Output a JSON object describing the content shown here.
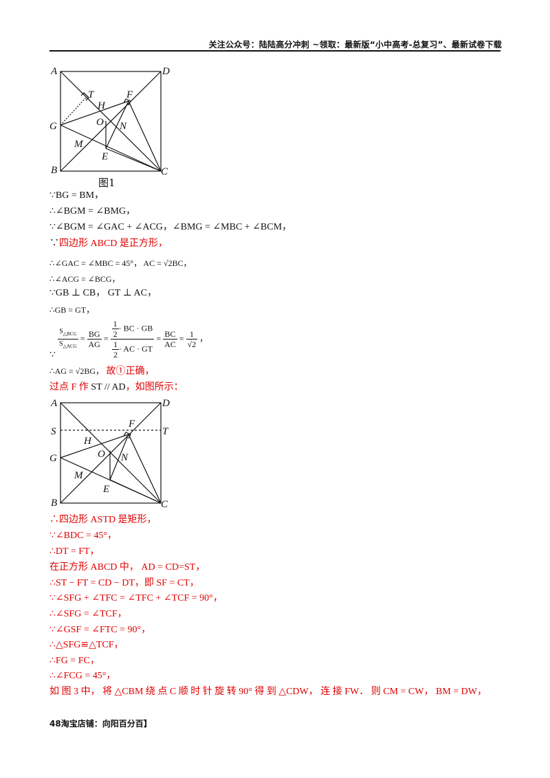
{
  "header": {
    "text": "关注公众号：陆陆高分冲刺  ~领取：最新版“小中高考-总复习”、最新试卷下载"
  },
  "figure1": {
    "caption": "图1",
    "labels": {
      "A": "A",
      "B": "B",
      "C": "C",
      "D": "D",
      "T": "T",
      "F": "F",
      "H": "H",
      "O": "O",
      "N": "N",
      "G": "G",
      "M": "M",
      "E": "E"
    }
  },
  "figure2": {
    "labels": {
      "A": "A",
      "B": "B",
      "C": "C",
      "D": "D",
      "S": "S",
      "T": "T",
      "F": "F",
      "H": "H",
      "O": "O",
      "N": "N",
      "G": "G",
      "M": "M",
      "E": "E"
    }
  },
  "lines": {
    "l1": "∵BG = BM，",
    "l2": "∴∠BGM = ∠BMG，",
    "l3": "∵∠BGM = ∠GAC + ∠ACG，∠BMG = ∠MBC + ∠BCM，",
    "l4a": "∵",
    "l4b": "四边形 ABCD 是正方形，",
    "l5": "∴∠GAC = ∠MBC = 45°，  AC = √2BC，",
    "l6": "∴∠ACG = ∠BCG，",
    "l7": "∵GB ⊥ CB，  GT ⊥ AC，",
    "l8": "∴GB = GT，",
    "frac": {
      "s1_num": "S",
      "s1_sub": "△BCG",
      "s2_num": "S",
      "s2_sub": "△ACG",
      "eq": "=",
      "f2_num": "BG",
      "f2_den": "AG",
      "f3_num_a": "1",
      "f3_num_b": "2",
      "f3_num_c": "· BC · GB",
      "f3_den_a": "1",
      "f3_den_b": "2",
      "f3_den_c": "· AC · GT",
      "f4_num": "BC",
      "f4_den": "AC",
      "f5_num": "1",
      "f5_den": "√2",
      "tail": "，"
    },
    "l9": "∵",
    "l10a": "∴AG = √2BG，",
    "l10b": "故①正确，",
    "l11a": "过点 F 作 ",
    "l11b": "ST // AD",
    "l11c": "，如图所示：",
    "l12": "∴四边形 ASTD 是矩形，",
    "l13": "∵∠BDC = 45°，",
    "l14": "∴DT = FT，",
    "l15": "在正方形 ABCD 中， AD = CD=ST，",
    "l16": "∴ST − FT = CD − DT，即 SF = CT，",
    "l17": "∵∠SFG + ∠TFC = ∠TFC + ∠TCF = 90°，",
    "l18": "∴∠SFG = ∠TCF，",
    "l19": "∵∠GSF = ∠FTC = 90°，",
    "l20": "∴△SFG≌△TCF，",
    "l21": "∴FG = FC，",
    "l22": "∴∠FCG = 45°，",
    "l23": "如 图 3 中， 将 △CBM 绕 点 C 顺 时 针 旋 转 90° 得 到 △CDW， 连 接 FW． 则 CM = CW， BM = DW，"
  },
  "footer": {
    "text": "48淘宝店铺：向阳百分百】"
  },
  "colors": {
    "accent_red": "#e00000",
    "text": "#111111"
  }
}
